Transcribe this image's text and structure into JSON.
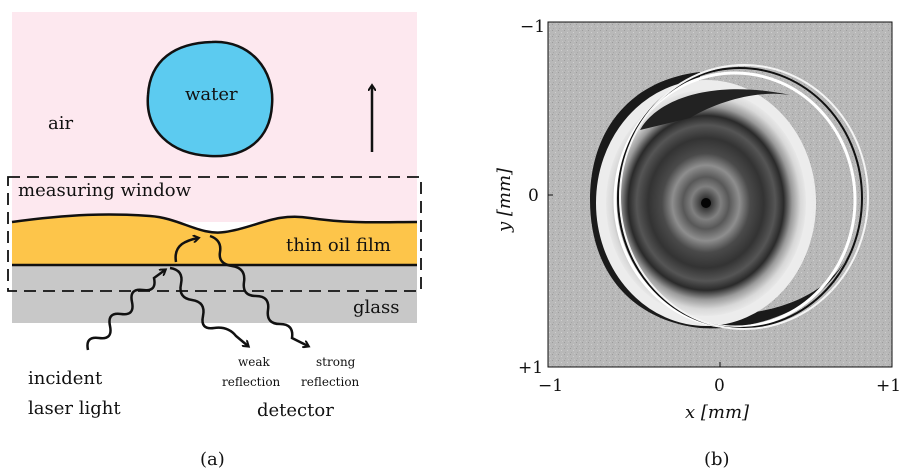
{
  "panel_a": {
    "caption": "(a)",
    "air": "air",
    "water": "water",
    "measuring_window": "measuring window",
    "oil_film": "thin oil film",
    "glass": "glass",
    "incident_line1": "incident",
    "incident_line2": "laser light",
    "weak_line1": "weak",
    "weak_line2": "reflection",
    "strong_line1": "strong",
    "strong_line2": "reflection",
    "detector": "detector",
    "colors": {
      "air": "#fde8ef",
      "water": "#5ccbf0",
      "oil": "#fdc54a",
      "glass": "#c8c8c8"
    }
  },
  "panel_b": {
    "caption": "(b)",
    "x_label": "x [mm]",
    "y_label": "y [mm]",
    "x_ticks": [
      "−1",
      "0",
      "+1"
    ],
    "y_ticks": [
      "−1",
      "0",
      "+1"
    ]
  }
}
